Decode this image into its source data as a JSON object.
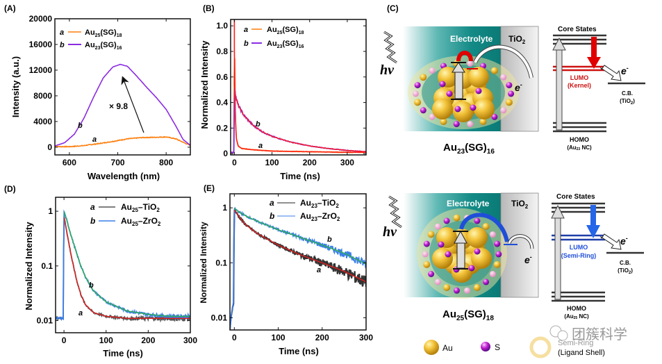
{
  "chart_data": [
    {
      "panel": "(A)",
      "type": "line",
      "xlabel": "Wavelength (nm)",
      "ylabel": "Intensity (a.u.)",
      "xlim": [
        570,
        850
      ],
      "ylim": [
        -1200,
        20000
      ],
      "xticks": [
        600,
        700,
        800
      ],
      "yticks": [
        0,
        4000,
        8000,
        12000,
        16000,
        20000
      ],
      "legend_position": "top-left",
      "annotation": "× 9.8",
      "series": [
        {
          "key": "a",
          "name": "Au25(SG)18",
          "name_main": "Au",
          "sub1": "25",
          "mid": "(SG)",
          "sub2": "18",
          "color": "#ff7f0e",
          "x": [
            570,
            600,
            630,
            660,
            690,
            720,
            750,
            780,
            800,
            820,
            840,
            850
          ],
          "y": [
            100,
            80,
            250,
            550,
            900,
            1300,
            1500,
            1550,
            1600,
            1300,
            600,
            300
          ]
        },
        {
          "key": "b",
          "name": "Au23(SG)16",
          "name_main": "Au",
          "sub1": "23",
          "mid": "(SG)",
          "sub2": "16",
          "color": "#8b2be2",
          "x": [
            570,
            590,
            610,
            630,
            650,
            670,
            690,
            705,
            720,
            740,
            760,
            780,
            800,
            820,
            835,
            850
          ],
          "y": [
            200,
            700,
            2000,
            4500,
            7800,
            10800,
            12500,
            12900,
            12600,
            11000,
            9300,
            7700,
            5900,
            3300,
            1200,
            300
          ]
        }
      ]
    },
    {
      "panel": "(B)",
      "type": "line",
      "xlabel": "Time (ns)",
      "ylabel": "Normalized Intensity",
      "xlim": [
        -10,
        350
      ],
      "ylim": [
        -0.01,
        1.05
      ],
      "xticks": [
        0,
        100,
        200,
        300
      ],
      "yticks": [
        0,
        0.2,
        0.4,
        0.6,
        0.8,
        1.0
      ],
      "ytick_labels": [
        "0",
        "0.2",
        "0.4",
        "0.6",
        "0.8",
        "1.0"
      ],
      "legend_position": "top-center",
      "fit_color": "#ff1a1a",
      "series": [
        {
          "key": "a",
          "name": "Au25(SG)18",
          "name_main": "Au",
          "sub1": "25",
          "mid": "(SG)",
          "sub2": "18",
          "color": "#ff7f0e",
          "x": [
            -10,
            -1,
            0,
            2,
            5,
            10,
            20,
            50,
            100,
            200,
            300,
            350
          ],
          "y": [
            0.01,
            0.01,
            1.0,
            0.35,
            0.12,
            0.06,
            0.04,
            0.03,
            0.02,
            0.015,
            0.01,
            0.01
          ]
        },
        {
          "key": "b",
          "name": "Au23(SG)16",
          "name_main": "Au",
          "sub1": "23",
          "mid": "(SG)",
          "sub2": "16",
          "color": "#8b2be2",
          "x": [
            -10,
            -1,
            0,
            3,
            10,
            25,
            50,
            75,
            100,
            150,
            200,
            250,
            300,
            350
          ],
          "y": [
            0.01,
            0.01,
            0.55,
            0.45,
            0.38,
            0.3,
            0.22,
            0.17,
            0.135,
            0.09,
            0.06,
            0.04,
            0.025,
            0.015
          ]
        }
      ]
    },
    {
      "panel": "(D)",
      "type": "line",
      "yscale": "log",
      "xlabel": "Time (ns)",
      "ylabel": "Normalized Intensity",
      "xlim": [
        -20,
        300
      ],
      "ylim": [
        0.006,
        1.8
      ],
      "xticks": [
        0,
        100,
        200,
        300
      ],
      "yticks": [
        0.01,
        0.1,
        1
      ],
      "ytick_labels": [
        "0.01",
        "0.1",
        "1"
      ],
      "legend_position": "top-right",
      "series": [
        {
          "key": "a",
          "name": "Au25–TiO2",
          "name_main": "Au",
          "sub1": "25",
          "mid": "–TiO",
          "sub2": "2",
          "color": "#555555",
          "fit_color": "#e02020",
          "x": [
            -20,
            -1,
            0,
            5,
            10,
            20,
            30,
            40,
            50,
            70,
            100,
            150,
            200,
            300
          ],
          "y": [
            0.011,
            0.011,
            0.8,
            0.5,
            0.3,
            0.12,
            0.055,
            0.03,
            0.02,
            0.014,
            0.012,
            0.011,
            0.011,
            0.011
          ]
        },
        {
          "key": "b",
          "name": "Au25–ZrO2",
          "name_main": "Au",
          "sub1": "25",
          "mid": "–ZrO",
          "sub2": "2",
          "color": "#3a7ee8",
          "fit_color": "#2fae4f",
          "x": [
            -20,
            -1,
            0,
            5,
            10,
            20,
            30,
            40,
            50,
            70,
            100,
            150,
            200,
            250,
            300
          ],
          "y": [
            0.011,
            0.011,
            1.0,
            0.75,
            0.55,
            0.3,
            0.17,
            0.1,
            0.065,
            0.035,
            0.022,
            0.015,
            0.013,
            0.012,
            0.012
          ]
        }
      ]
    },
    {
      "panel": "(E)",
      "type": "line",
      "yscale": "log",
      "xlabel": "Time (ns)",
      "ylabel": "Normalized Intensity",
      "xlim": [
        -10,
        300
      ],
      "ylim": [
        0.006,
        1.8
      ],
      "xticks": [
        0,
        100,
        200,
        300
      ],
      "yticks": [
        0.01,
        0.1,
        1
      ],
      "ytick_labels": [
        "0.01",
        "0.1",
        "1"
      ],
      "legend_position": "top-right",
      "series": [
        {
          "key": "a",
          "name": "Au23–TiO2",
          "name_main": "Au",
          "sub1": "23",
          "mid": "–TiO",
          "sub2": "2",
          "color": "#333333",
          "fit_color": "#e02020",
          "x": [
            -10,
            -1,
            0,
            10,
            25,
            50,
            75,
            100,
            150,
            200,
            250,
            300
          ],
          "y": [
            0.006,
            0.02,
            0.92,
            0.7,
            0.5,
            0.35,
            0.27,
            0.21,
            0.14,
            0.1,
            0.07,
            0.045
          ]
        },
        {
          "key": "b",
          "name": "Au23–ZrO2",
          "name_main": "Au",
          "sub1": "23",
          "mid": "–ZrO",
          "sub2": "2",
          "color": "#3a7ee8",
          "fit_color": "#2fae4f",
          "x": [
            -10,
            -1,
            0,
            10,
            25,
            50,
            75,
            100,
            150,
            200,
            250,
            300
          ],
          "y": [
            0.006,
            0.02,
            0.98,
            0.85,
            0.72,
            0.58,
            0.48,
            0.4,
            0.29,
            0.21,
            0.15,
            0.095
          ]
        }
      ]
    }
  ],
  "schematic_top": {
    "panel": "(C)",
    "hv": "hν",
    "electrolyte": "Electrolyte",
    "tio2_main": "TiO",
    "tio2_sub": "2",
    "electron": "e",
    "electron_sup": "-",
    "cluster_main": "Au",
    "cluster_sub1": "23",
    "cluster_mid": "(SG)",
    "cluster_sub2": "16",
    "accent": "#e00000",
    "diagram": {
      "core_states": "Core States",
      "lumo": "LUMO",
      "lumo_sub": "(Kernel)",
      "cb": "C.B.",
      "cb_sub_main": "(TiO",
      "cb_sub_sub": "2",
      "cb_sub_end": ")",
      "electron": "e",
      "electron_sup": "-",
      "homo": "HOMO",
      "homo_sub_main": "(Au",
      "homo_sub_sub": "23",
      "homo_sub_end": " NC)"
    }
  },
  "schematic_bottom": {
    "hv": "hν",
    "electrolyte": "Electrolyte",
    "tio2_main": "TiO",
    "tio2_sub": "2",
    "electron": "e",
    "electron_sup": "-",
    "cluster_main": "Au",
    "cluster_sub1": "25",
    "cluster_mid": "(SG)",
    "cluster_sub2": "18",
    "accent": "#1f4fd8",
    "diagram": {
      "core_states": "Core States",
      "lumo": "LUMO",
      "lumo_sub": "(Semi-Ring)",
      "cb": "C.B.",
      "cb_sub_main": "(TiO",
      "cb_sub_sub": "2",
      "cb_sub_end": ")",
      "electron": "e",
      "electron_sup": "-",
      "homo": "HOMO",
      "homo_sub_main": "(Au",
      "homo_sub_sub": "25",
      "homo_sub_end": " NC)"
    }
  },
  "legend_atoms": {
    "au": "Au",
    "s": "S",
    "ring_line1": "Semi-Ring",
    "ring_line2": "(Ligand Shell)"
  },
  "watermark": "团簇科学"
}
